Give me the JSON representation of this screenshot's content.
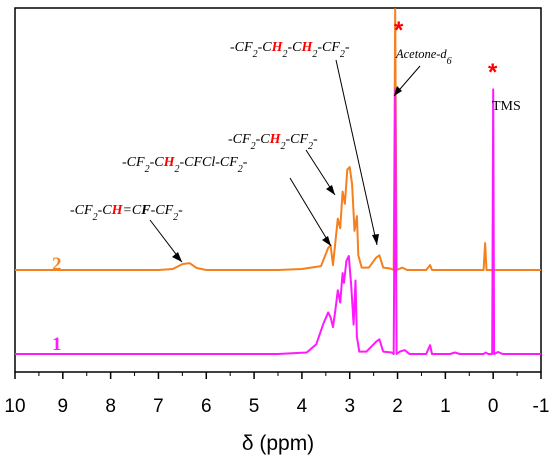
{
  "chart_data": {
    "type": "line",
    "title": "",
    "xlabel": "δ (ppm)",
    "ylabel": "",
    "x_reversed": true,
    "xlim": [
      10,
      -1
    ],
    "x_ticks": [
      "10",
      "9",
      "8",
      "7",
      "6",
      "5",
      "4",
      "3",
      "2",
      "1",
      "0",
      "-1"
    ],
    "grid": false,
    "series": [
      {
        "name": "2",
        "color": "#f5801e",
        "points": [
          [
            10,
            0
          ],
          [
            7,
            0
          ],
          [
            6.7,
            0.02
          ],
          [
            6.5,
            0.12
          ],
          [
            6.35,
            0.14
          ],
          [
            6.2,
            0.04
          ],
          [
            6.0,
            0
          ],
          [
            4.5,
            0
          ],
          [
            4.0,
            0.02
          ],
          [
            3.6,
            0.08
          ],
          [
            3.45,
            0.45
          ],
          [
            3.4,
            0.5
          ],
          [
            3.35,
            0.1
          ],
          [
            3.25,
            1.05
          ],
          [
            3.2,
            0.85
          ],
          [
            3.15,
            1.6
          ],
          [
            3.1,
            1.35
          ],
          [
            3.05,
            2.05
          ],
          [
            3.0,
            2.1
          ],
          [
            2.95,
            1.75
          ],
          [
            2.9,
            0.8
          ],
          [
            2.85,
            1.1
          ],
          [
            2.82,
            0.3
          ],
          [
            2.75,
            0.05
          ],
          [
            2.6,
            0.05
          ],
          [
            2.45,
            0.25
          ],
          [
            2.38,
            0.3
          ],
          [
            2.3,
            0.05
          ],
          [
            2.15,
            0.03
          ],
          [
            2.08,
            0
          ],
          [
            2.05,
            5.4
          ],
          [
            2.02,
            0
          ],
          [
            1.9,
            0.05
          ],
          [
            1.8,
            0
          ],
          [
            1.4,
            0
          ],
          [
            1.32,
            0.1
          ],
          [
            1.28,
            0
          ],
          [
            0.9,
            0
          ],
          [
            0.2,
            0
          ],
          [
            0.17,
            0.55
          ],
          [
            0.14,
            0
          ],
          [
            -1,
            0
          ]
        ]
      },
      {
        "name": "1",
        "color": "#ff19ff",
        "points": [
          [
            10,
            0
          ],
          [
            4.5,
            0
          ],
          [
            3.9,
            0.03
          ],
          [
            3.7,
            0.2
          ],
          [
            3.55,
            0.62
          ],
          [
            3.45,
            0.85
          ],
          [
            3.4,
            0.75
          ],
          [
            3.35,
            0.55
          ],
          [
            3.3,
            0.9
          ],
          [
            3.25,
            1.3
          ],
          [
            3.2,
            1.05
          ],
          [
            3.15,
            1.65
          ],
          [
            3.12,
            1.45
          ],
          [
            3.07,
            1.9
          ],
          [
            3.02,
            2.0
          ],
          [
            2.97,
            1.4
          ],
          [
            2.92,
            0.6
          ],
          [
            2.88,
            1.5
          ],
          [
            2.85,
            0.35
          ],
          [
            2.8,
            0.05
          ],
          [
            2.65,
            0.05
          ],
          [
            2.45,
            0.25
          ],
          [
            2.38,
            0.3
          ],
          [
            2.3,
            0.05
          ],
          [
            2.12,
            0.03
          ],
          [
            2.08,
            0
          ],
          [
            2.05,
            5.4
          ],
          [
            2.02,
            0
          ],
          [
            1.95,
            0.05
          ],
          [
            1.85,
            0.08
          ],
          [
            1.75,
            0
          ],
          [
            1.4,
            0
          ],
          [
            1.32,
            0.18
          ],
          [
            1.28,
            0
          ],
          [
            0.9,
            0
          ],
          [
            0.8,
            0.03
          ],
          [
            0.7,
            0
          ],
          [
            0.2,
            0
          ],
          [
            0.16,
            0.03
          ],
          [
            0.1,
            0
          ],
          [
            0.02,
            0
          ],
          [
            0.0,
            5.4
          ],
          [
            -0.02,
            0
          ],
          [
            -0.1,
            0.04
          ],
          [
            -0.2,
            0
          ],
          [
            -1,
            0
          ]
        ]
      }
    ],
    "annotations": [
      {
        "text_parts": [
          "-CF",
          "2",
          "-C",
          "H",
          "=C",
          "F",
          "-CF",
          "2",
          "-"
        ],
        "arrow_to": 6.4,
        "series": "2"
      },
      {
        "text_parts": [
          "-CF",
          "2",
          "-C",
          "H",
          "2",
          "-CFCl-CF",
          "2",
          "-"
        ],
        "arrow_to": 3.4,
        "series": "2"
      },
      {
        "text_parts": [
          "-CF",
          "2",
          "-C",
          "H",
          "2",
          "-CF",
          "2",
          "-"
        ],
        "arrow_to": 3.0,
        "series": "2"
      },
      {
        "text_parts": [
          "-CF",
          "2",
          "-C",
          "H",
          "2",
          "-C",
          "H",
          "2",
          "-CF",
          "2",
          "-"
        ],
        "arrow_to": 2.4,
        "series": "2"
      },
      {
        "text_parts": [
          "Acetone-d",
          "6"
        ],
        "arrow_to": 2.05,
        "series": "2"
      },
      {
        "text": "TMS",
        "at": 0.0
      }
    ],
    "star_symbol": "*",
    "colors": {
      "series2": "#f5801e",
      "series1": "#ff19ff",
      "highlight": "#ff0000",
      "axis": "#000000"
    }
  }
}
